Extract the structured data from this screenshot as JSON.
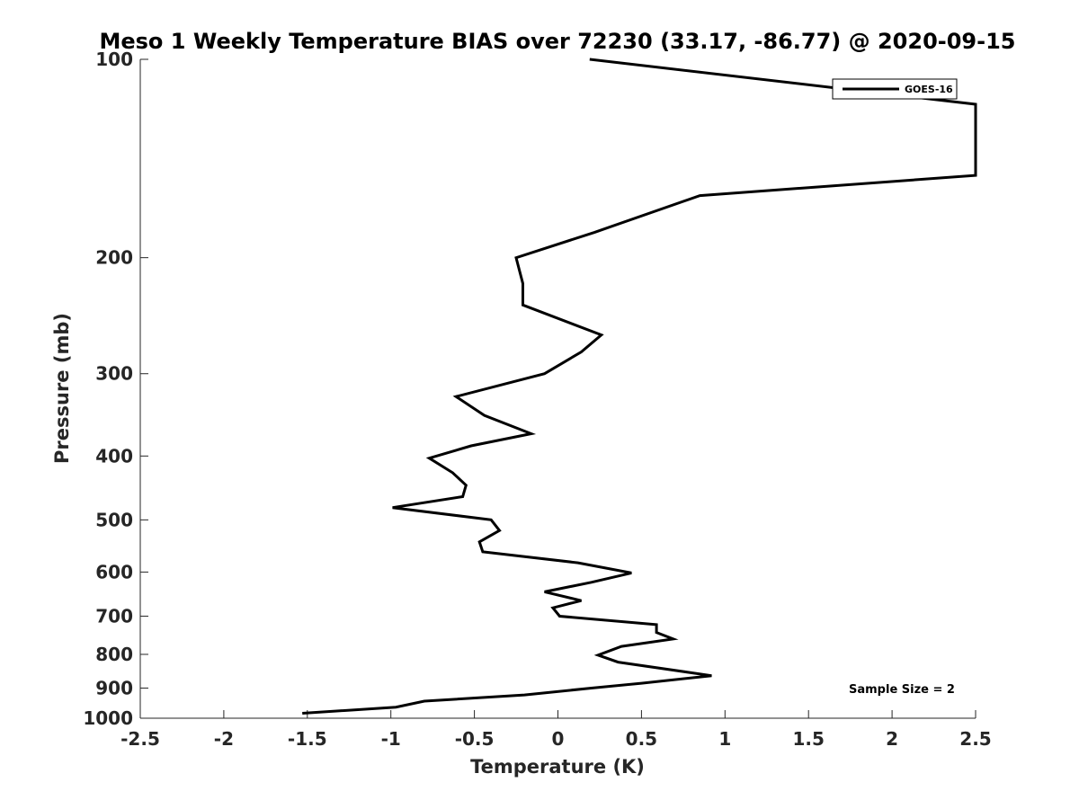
{
  "chart_data": {
    "type": "line",
    "title": "Meso 1 Weekly Temperature BIAS over 72230 (33.17, -86.77) @ 2020-09-15",
    "xlabel": "Temperature (K)",
    "ylabel": "Pressure (mb)",
    "xlim": [
      -2.5,
      2.5
    ],
    "ylim": [
      100,
      1000
    ],
    "y_scale": "log",
    "y_reversed": true,
    "x_ticks": [
      "-2.5",
      "-2",
      "-1.5",
      "-1",
      "-0.5",
      "0",
      "0.5",
      "1",
      "1.5",
      "2",
      "2.5"
    ],
    "y_ticks": [
      "100",
      "200",
      "300",
      "400",
      "500",
      "600",
      "700",
      "800",
      "900",
      "1000"
    ],
    "grid": false,
    "legend_position": "top-right",
    "annotation": "Sample Size = 2",
    "series": [
      {
        "name": "GOES-16",
        "color": "#000000",
        "points": [
          {
            "x": 0.19,
            "y": 100
          },
          {
            "x": 2.5,
            "y": 117
          },
          {
            "x": 2.5,
            "y": 150
          },
          {
            "x": 0.85,
            "y": 161
          },
          {
            "x": 0.22,
            "y": 183
          },
          {
            "x": -0.25,
            "y": 200
          },
          {
            "x": -0.21,
            "y": 219
          },
          {
            "x": -0.21,
            "y": 236
          },
          {
            "x": 0.26,
            "y": 262
          },
          {
            "x": 0.14,
            "y": 278
          },
          {
            "x": -0.08,
            "y": 300
          },
          {
            "x": -0.61,
            "y": 325
          },
          {
            "x": -0.44,
            "y": 347
          },
          {
            "x": -0.16,
            "y": 370
          },
          {
            "x": -0.52,
            "y": 386
          },
          {
            "x": -0.77,
            "y": 403
          },
          {
            "x": -0.63,
            "y": 424
          },
          {
            "x": -0.55,
            "y": 443
          },
          {
            "x": -0.57,
            "y": 461
          },
          {
            "x": -0.99,
            "y": 479
          },
          {
            "x": -0.4,
            "y": 500
          },
          {
            "x": -0.35,
            "y": 519
          },
          {
            "x": -0.47,
            "y": 540
          },
          {
            "x": -0.45,
            "y": 559
          },
          {
            "x": 0.12,
            "y": 581
          },
          {
            "x": 0.44,
            "y": 602
          },
          {
            "x": 0.2,
            "y": 622
          },
          {
            "x": -0.08,
            "y": 643
          },
          {
            "x": 0.14,
            "y": 663
          },
          {
            "x": -0.03,
            "y": 680
          },
          {
            "x": 0.01,
            "y": 700
          },
          {
            "x": 0.59,
            "y": 721
          },
          {
            "x": 0.59,
            "y": 741
          },
          {
            "x": 0.69,
            "y": 758
          },
          {
            "x": 0.38,
            "y": 778
          },
          {
            "x": 0.24,
            "y": 802
          },
          {
            "x": 0.36,
            "y": 822
          },
          {
            "x": 0.92,
            "y": 862
          },
          {
            "x": 0.5,
            "y": 885
          },
          {
            "x": 0.2,
            "y": 900
          },
          {
            "x": -0.2,
            "y": 922
          },
          {
            "x": -0.8,
            "y": 942
          },
          {
            "x": -0.97,
            "y": 962
          },
          {
            "x": -1.53,
            "y": 983
          }
        ]
      }
    ]
  }
}
